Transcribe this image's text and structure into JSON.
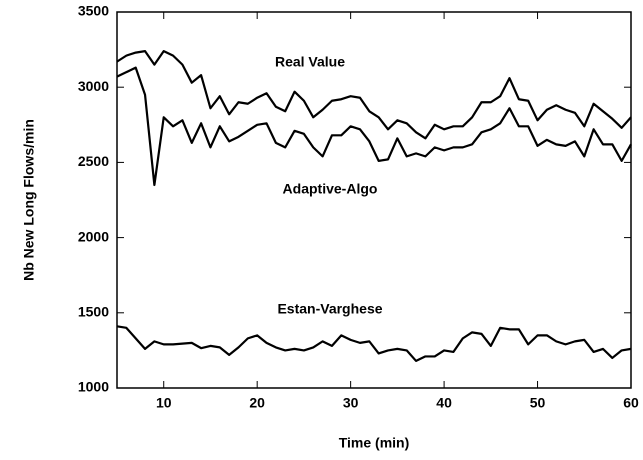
{
  "chart_data": {
    "type": "line",
    "xlabel": "Time (min)",
    "ylabel": "Nb New Long Flows/min",
    "x": [
      5,
      6,
      7,
      8,
      9,
      10,
      11,
      12,
      13,
      14,
      15,
      16,
      17,
      18,
      19,
      20,
      21,
      22,
      23,
      24,
      25,
      26,
      27,
      28,
      29,
      30,
      31,
      32,
      33,
      34,
      35,
      36,
      37,
      38,
      39,
      40,
      41,
      42,
      43,
      44,
      45,
      46,
      47,
      48,
      49,
      50,
      51,
      52,
      53,
      54,
      55,
      56,
      57,
      58,
      59,
      60
    ],
    "series": [
      {
        "name": "Real Value",
        "color": "#000000",
        "values": [
          3170,
          3210,
          3230,
          3240,
          3150,
          3240,
          3210,
          3150,
          3030,
          3080,
          2860,
          2940,
          2820,
          2900,
          2890,
          2930,
          2960,
          2870,
          2840,
          2970,
          2910,
          2800,
          2850,
          2910,
          2920,
          2940,
          2930,
          2840,
          2800,
          2720,
          2780,
          2760,
          2700,
          2660,
          2750,
          2720,
          2740,
          2740,
          2800,
          2900,
          2900,
          2940,
          3060,
          2920,
          2910,
          2780,
          2850,
          2880,
          2850,
          2830,
          2740,
          2890,
          2840,
          2790,
          2730,
          2800
        ]
      },
      {
        "name": "Adaptive-Algo",
        "color": "#000000",
        "values": [
          3070,
          3100,
          3130,
          2950,
          2350,
          2800,
          2740,
          2780,
          2630,
          2760,
          2600,
          2740,
          2640,
          2670,
          2710,
          2750,
          2760,
          2630,
          2600,
          2710,
          2690,
          2600,
          2540,
          2680,
          2680,
          2740,
          2720,
          2640,
          2510,
          2520,
          2660,
          2540,
          2560,
          2540,
          2600,
          2580,
          2600,
          2600,
          2620,
          2700,
          2720,
          2760,
          2860,
          2740,
          2740,
          2610,
          2650,
          2620,
          2610,
          2640,
          2540,
          2720,
          2620,
          2620,
          2510,
          2620
        ]
      },
      {
        "name": "Estan-Varghese",
        "color": "#000000",
        "values": [
          1410,
          1400,
          1330,
          1260,
          1310,
          1290,
          1290,
          1295,
          1300,
          1265,
          1280,
          1270,
          1220,
          1270,
          1330,
          1350,
          1300,
          1270,
          1250,
          1260,
          1250,
          1270,
          1310,
          1280,
          1350,
          1320,
          1300,
          1310,
          1230,
          1250,
          1260,
          1250,
          1180,
          1210,
          1210,
          1250,
          1240,
          1330,
          1370,
          1360,
          1280,
          1400,
          1390,
          1390,
          1290,
          1350,
          1350,
          1310,
          1290,
          1310,
          1320,
          1240,
          1260,
          1200,
          1250,
          1260
        ]
      }
    ],
    "xlim": [
      5,
      60
    ],
    "xticks": [
      10,
      20,
      30,
      40,
      50,
      60
    ],
    "ylim": [
      1000,
      3500
    ],
    "yticks": [
      1000,
      1500,
      2000,
      2500,
      3000,
      3500
    ]
  }
}
